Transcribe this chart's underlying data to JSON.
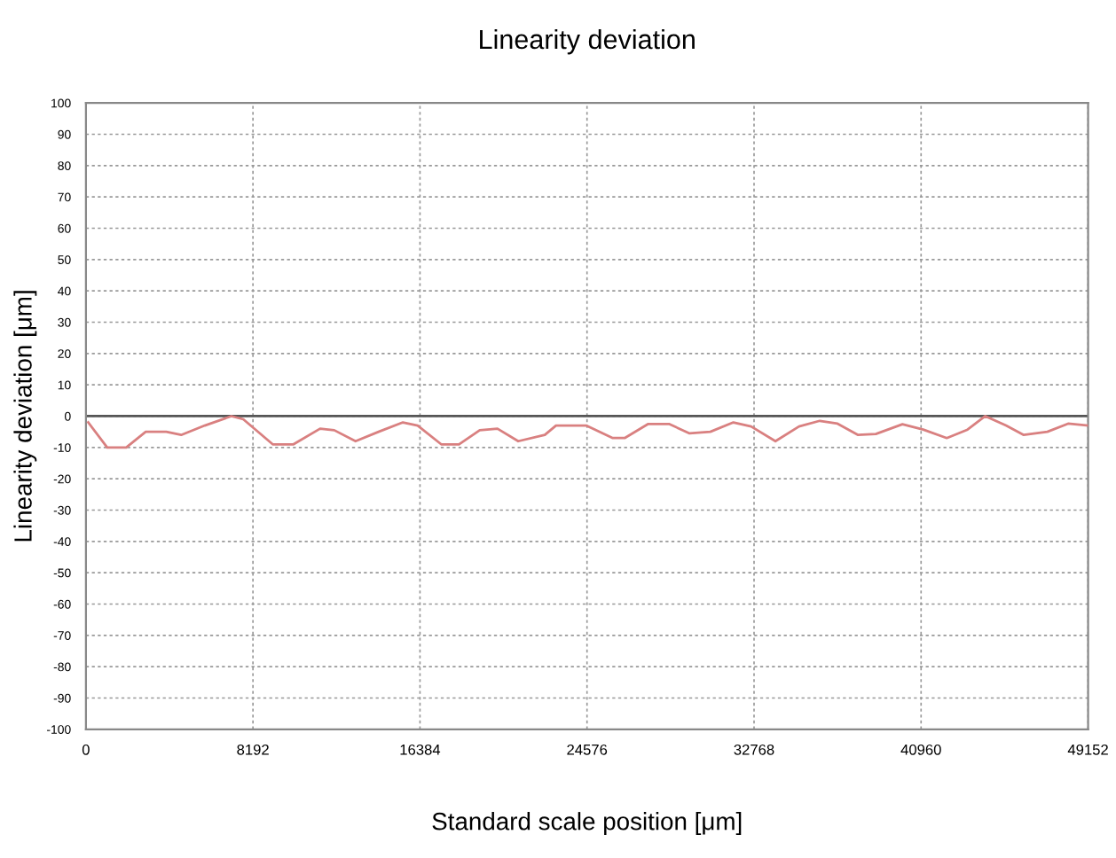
{
  "chart_data": {
    "type": "line",
    "title": "Linearity deviation",
    "xlabel": "Standard scale position [μm]",
    "ylabel": "Linearity deviation [μm]",
    "series": [
      {
        "color": "#d98080",
        "x": [
          113,
          1044,
          1975,
          2932,
          3941,
          4672,
          5829,
          7134,
          7717,
          9161,
          10179,
          11484,
          12180,
          13224,
          14355,
          15546,
          16269,
          17426,
          18296,
          19314,
          20184,
          21202,
          22507,
          23055,
          24533,
          25839,
          26422,
          27579,
          28597,
          29606,
          30624,
          31755,
          32625,
          33817,
          34974,
          35992,
          36862,
          37871,
          38741,
          40046,
          41064,
          42221,
          43239,
          44109,
          45126,
          45996,
          47154,
          48172,
          49152
        ],
        "values": [
          -2,
          -10,
          -10,
          -5,
          -5,
          -6,
          -3,
          0,
          -1,
          -9,
          -9,
          -4,
          -4.5,
          -8,
          -5,
          -2,
          -3,
          -9,
          -9,
          -4.5,
          -4,
          -8,
          -6,
          -3,
          -3,
          -7,
          -7,
          -2.5,
          -2.5,
          -5.5,
          -5,
          -2,
          -3.3,
          -8,
          -3.3,
          -1.5,
          -2.4,
          -6,
          -5.7,
          -2.6,
          -4.3,
          -7,
          -4.3,
          0,
          -3,
          -6,
          -5,
          -2.4,
          -3
        ]
      }
    ],
    "xlim": [
      0,
      49152
    ],
    "ylim": [
      -100,
      100
    ],
    "xticks": [
      0,
      8192,
      16384,
      24576,
      32768,
      40960,
      49152
    ],
    "yticks": [
      -100,
      -90,
      -80,
      -70,
      -60,
      -50,
      -40,
      -30,
      -20,
      -10,
      0,
      10,
      20,
      30,
      40,
      50,
      60,
      70,
      80,
      90,
      100
    ],
    "ref_lines": [
      {
        "axis": "y",
        "value": 0,
        "color": "#555555",
        "line_style": "solid"
      }
    ],
    "grid": true,
    "marker": "none",
    "line_style": "solid",
    "legend": false
  }
}
